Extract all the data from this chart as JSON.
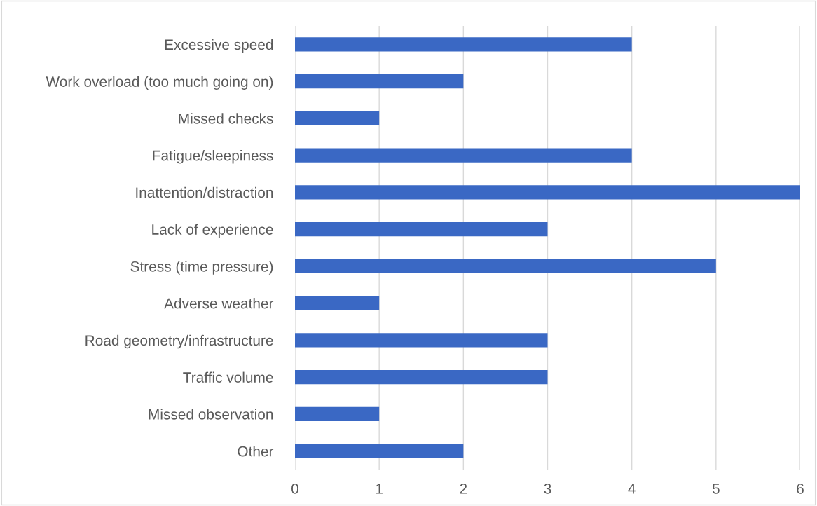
{
  "chart_data": {
    "type": "bar",
    "orientation": "horizontal",
    "categories": [
      "Excessive speed",
      "Work overload (too much going on)",
      "Missed checks",
      "Fatigue/sleepiness",
      "Inattention/distraction",
      "Lack of experience",
      "Stress (time pressure)",
      "Adverse weather",
      "Road geometry/infrastructure",
      "Traffic volume",
      "Missed observation",
      "Other"
    ],
    "values": [
      4,
      2,
      1,
      4,
      6,
      3,
      5,
      1,
      3,
      3,
      1,
      2
    ],
    "color": "#3a68c4",
    "xlim": [
      0,
      6
    ],
    "xticks": [
      0,
      1,
      2,
      3,
      4,
      5,
      6
    ],
    "grid": "x",
    "legend": false
  }
}
